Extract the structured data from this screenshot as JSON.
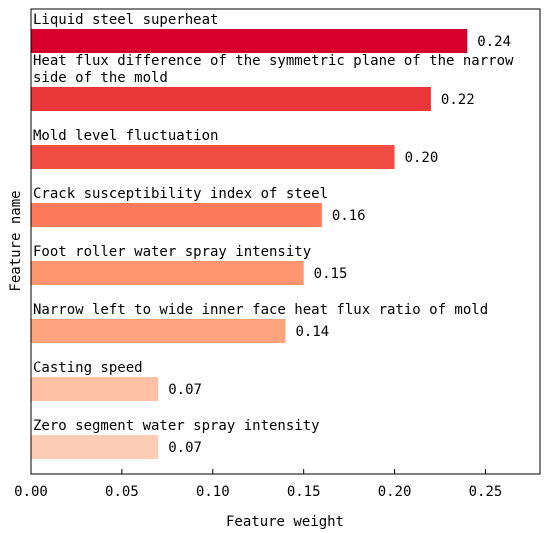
{
  "chart_data": {
    "type": "bar",
    "orientation": "horizontal",
    "xlabel": "Feature weight",
    "ylabel": "Feature name",
    "xlim": [
      0,
      0.28
    ],
    "xticks": [
      0.0,
      0.05,
      0.1,
      0.15,
      0.2,
      0.25
    ],
    "xtick_labels": [
      "0.00",
      "0.05",
      "0.10",
      "0.15",
      "0.20",
      "0.25"
    ],
    "grid": false,
    "legend": "none",
    "bars": [
      {
        "label": [
          "Liquid steel superheat"
        ],
        "value": 0.24,
        "value_label": "0.24",
        "color": "#d7002d"
      },
      {
        "label": [
          "Heat flux difference of the symmetric plane of the narrow",
          "side of the mold"
        ],
        "value": 0.22,
        "value_label": "0.22",
        "color": "#e93639"
      },
      {
        "label": [
          "Mold level fluctuation"
        ],
        "value": 0.2,
        "value_label": "0.20",
        "color": "#f24d43"
      },
      {
        "label": [
          "Crack susceptibility index of steel"
        ],
        "value": 0.16,
        "value_label": "0.16",
        "color": "#ff7a5c"
      },
      {
        "label": [
          "Foot roller water spray intensity"
        ],
        "value": 0.15,
        "value_label": "0.15",
        "color": "#ff9670"
      },
      {
        "label": [
          "Narrow left to wide inner face heat flux ratio of mold"
        ],
        "value": 0.14,
        "value_label": "0.14",
        "color": "#ffa37e"
      },
      {
        "label": [
          "Casting speed"
        ],
        "value": 0.07,
        "value_label": "0.07",
        "color": "#ffc0a4"
      },
      {
        "label": [
          "Zero segment water spray intensity"
        ],
        "value": 0.07,
        "value_label": "0.07",
        "color": "#fcccb5"
      }
    ]
  }
}
